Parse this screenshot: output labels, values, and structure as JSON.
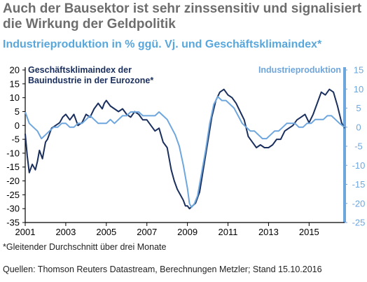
{
  "title_lines": [
    "Auch der Bausektor ist sehr zinssensitiv und signalisiert",
    "die Wirkung der Geldpolitik"
  ],
  "subtitle": "Industrieproduktion in % ggü. Vj. und Geschäftsklimaindex*",
  "footnote": "*Gleitender Durchschnitt über drei Monate",
  "sources": "Quellen: Thomson Reuters Datastream, Berechnungen Metzler; Stand 15.10.2016",
  "colors": {
    "dark": "#1a2f5e",
    "light": "#6ea6de",
    "axis": "#000000",
    "title": "#6d6d6d",
    "subtitle": "#58a7dc"
  },
  "chart_data": {
    "type": "line",
    "grid": false,
    "x_ticks": [
      "2001",
      "2003",
      "2005",
      "2007",
      "2009",
      "2011",
      "2013",
      "2015"
    ],
    "x_range": [
      2001.0,
      2016.75
    ],
    "y_left": {
      "range": [
        -35,
        20
      ],
      "ticks": [
        "20",
        "15",
        "10",
        "5",
        "0",
        "-5",
        "-10",
        "-15",
        "-20",
        "-25",
        "-30",
        "-35"
      ]
    },
    "y_right": {
      "range": [
        -25,
        15
      ],
      "ticks": [
        "15",
        "10",
        "5",
        "0",
        "-5",
        "-10",
        "-15",
        "-20",
        "-25"
      ]
    },
    "series": [
      {
        "name": "Geschäftsklimaindex der Bauindustrie in der Eurozone*",
        "name_lines": [
          "Geschäftsklimaindex der",
          "Bauindustrie in der Eurozone*"
        ],
        "axis": "left",
        "color": "#1a2f5e",
        "x": [
          2001.0,
          2001.1,
          2001.2,
          2001.35,
          2001.5,
          2001.6,
          2001.7,
          2001.85,
          2002.0,
          2002.1,
          2002.3,
          2002.5,
          2002.7,
          2002.85,
          2003.0,
          2003.2,
          2003.4,
          2003.6,
          2003.8,
          2004.0,
          2004.2,
          2004.4,
          2004.6,
          2004.8,
          2004.9,
          2005.0,
          2005.2,
          2005.4,
          2005.6,
          2005.8,
          2006.0,
          2006.2,
          2006.4,
          2006.6,
          2006.8,
          2007.0,
          2007.2,
          2007.4,
          2007.6,
          2007.8,
          2008.0,
          2008.2,
          2008.35,
          2008.5,
          2008.65,
          2008.8,
          2008.9,
          2009.0,
          2009.1,
          2009.25,
          2009.4,
          2009.6,
          2009.8,
          2010.0,
          2010.2,
          2010.4,
          2010.6,
          2010.8,
          2011.0,
          2011.2,
          2011.4,
          2011.6,
          2011.8,
          2012.0,
          2012.2,
          2012.4,
          2012.6,
          2012.8,
          2013.0,
          2013.2,
          2013.4,
          2013.6,
          2013.8,
          2014.0,
          2014.2,
          2014.4,
          2014.6,
          2014.8,
          2015.0,
          2015.2,
          2015.4,
          2015.6,
          2015.8,
          2016.0,
          2016.2,
          2016.4,
          2016.6,
          2016.75
        ],
        "y": [
          -3,
          -11,
          -17,
          -14,
          -16,
          -13,
          -9,
          -12,
          -6,
          -5,
          -1,
          0,
          1,
          3,
          4,
          2,
          4,
          0,
          1,
          4,
          3,
          6,
          8,
          6,
          8,
          9,
          7,
          6,
          5,
          6,
          4,
          3,
          5,
          4,
          2,
          2,
          0,
          -2,
          -1,
          -6,
          -8,
          -16,
          -20,
          -23,
          -25,
          -27,
          -29,
          -29,
          -30,
          -29,
          -28,
          -24,
          -15,
          -6,
          3,
          9,
          12,
          13,
          11,
          10,
          8,
          5,
          2,
          -4,
          -6,
          -8,
          -7,
          -8,
          -8,
          -7,
          -5,
          -5,
          -2,
          -1,
          0,
          2,
          3,
          4,
          1,
          4,
          8,
          12,
          11,
          13,
          12,
          7,
          1,
          -1
        ]
      },
      {
        "name": "Industrieproduktion",
        "axis": "right",
        "color": "#6ea6de",
        "x": [
          2001.0,
          2001.2,
          2001.4,
          2001.6,
          2001.8,
          2002.0,
          2002.2,
          2002.4,
          2002.6,
          2002.8,
          2003.0,
          2003.2,
          2003.4,
          2003.6,
          2003.8,
          2004.0,
          2004.2,
          2004.4,
          2004.6,
          2004.8,
          2005.0,
          2005.2,
          2005.4,
          2005.6,
          2005.8,
          2006.0,
          2006.2,
          2006.4,
          2006.6,
          2006.8,
          2007.0,
          2007.2,
          2007.4,
          2007.6,
          2007.8,
          2008.0,
          2008.2,
          2008.4,
          2008.6,
          2008.8,
          2009.0,
          2009.1,
          2009.2,
          2009.35,
          2009.5,
          2009.7,
          2009.9,
          2010.1,
          2010.3,
          2010.5,
          2010.7,
          2010.9,
          2011.1,
          2011.3,
          2011.5,
          2011.7,
          2011.9,
          2012.1,
          2012.3,
          2012.5,
          2012.7,
          2012.9,
          2013.1,
          2013.3,
          2013.5,
          2013.7,
          2013.9,
          2014.1,
          2014.3,
          2014.5,
          2014.7,
          2014.9,
          2015.1,
          2015.3,
          2015.5,
          2015.7,
          2015.9,
          2016.1,
          2016.3,
          2016.5,
          2016.75
        ],
        "y": [
          4,
          1,
          0,
          -1,
          -3,
          -2,
          -1,
          0,
          0,
          1,
          1,
          0,
          0,
          1,
          1,
          2,
          3,
          2,
          1,
          1,
          1,
          2,
          1,
          2,
          3,
          3,
          4,
          4,
          4,
          3,
          3,
          3,
          3,
          4,
          3,
          2,
          0,
          -2,
          -5,
          -10,
          -16,
          -20,
          -21,
          -20,
          -18,
          -12,
          -6,
          1,
          6,
          8,
          7,
          7,
          6,
          5,
          3,
          1,
          0,
          -1,
          -1,
          -2,
          -3,
          -3,
          -2,
          -1,
          -1,
          0,
          1,
          1,
          1,
          0,
          0,
          1,
          1,
          2,
          2,
          2,
          3,
          3,
          2,
          1,
          0
        ]
      }
    ]
  }
}
